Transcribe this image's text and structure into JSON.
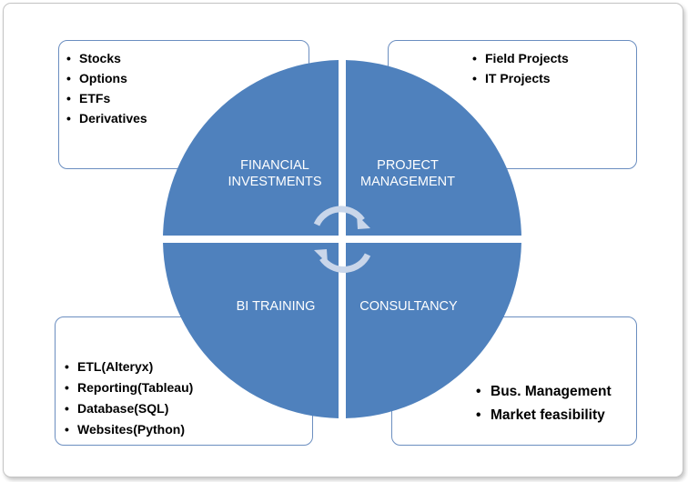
{
  "diagram": {
    "colors": {
      "segment": "#4f81bd",
      "box_border": "#6b8ec0",
      "arrow": "#c9d6ea"
    },
    "segments": {
      "top_left": {
        "line1": "FINANCIAL",
        "line2": "INVESTMENTS"
      },
      "top_right": {
        "line1": "PROJECT",
        "line2": "MANAGEMENT"
      },
      "bottom_left": {
        "label": "BI TRAINING"
      },
      "bottom_right": {
        "label": "CONSULTANCY"
      }
    },
    "boxes": {
      "top_left": {
        "items": [
          "Stocks",
          "Options",
          "ETFs",
          "Derivatives"
        ]
      },
      "top_right": {
        "items": [
          "Field Projects",
          "IT Projects"
        ]
      },
      "bottom_left": {
        "items": [
          "ETL(Alteryx)",
          "Reporting(Tableau)",
          "Database(SQL)",
          "Websites(Python)"
        ]
      },
      "bottom_right": {
        "items": [
          "Bus. Management",
          "Market feasibility"
        ]
      }
    },
    "center_icon": "circular-arrows-icon"
  }
}
